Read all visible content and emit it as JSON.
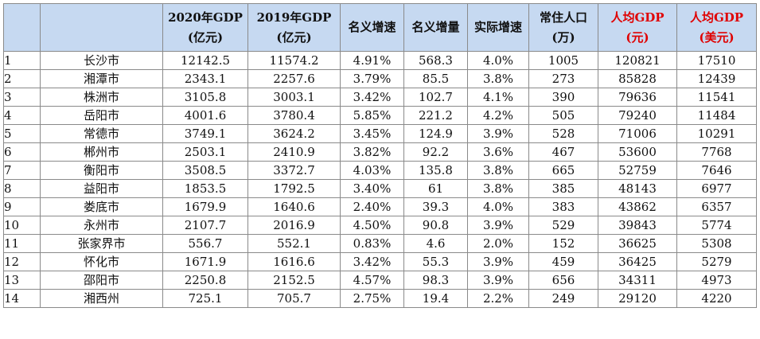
{
  "headers": [
    {
      "line1": "",
      "line2": ""
    },
    {
      "line1": "",
      "line2": ""
    },
    {
      "line1": "2020年GDP",
      "line2": "(亿元)"
    },
    {
      "line1": "2019年GDP",
      "line2": "(亿元)"
    },
    {
      "line1": "名义增速",
      "line2": ""
    },
    {
      "line1": "名义增量",
      "line2": ""
    },
    {
      "line1": "实际增速",
      "line2": ""
    },
    {
      "line1": "常住人口",
      "line2": "(万)"
    },
    {
      "line1": "人均GDP",
      "line2": "(元)"
    },
    {
      "line1": "人均GDP",
      "line2": "(美元)"
    }
  ],
  "rows": [
    {
      "rank": "1",
      "city": "长沙市",
      "gdp2020": "12142.5",
      "gdp2019": "11574.2",
      "nominal_growth": "4.91%",
      "nominal_increase": "568.3",
      "real_growth": "4.0%",
      "population": "1005",
      "per_capita_cny": "120821",
      "per_capita_usd": "17510"
    },
    {
      "rank": "2",
      "city": "湘潭市",
      "gdp2020": "2343.1",
      "gdp2019": "2257.6",
      "nominal_growth": "3.79%",
      "nominal_increase": "85.5",
      "real_growth": "3.8%",
      "population": "273",
      "per_capita_cny": "85828",
      "per_capita_usd": "12439"
    },
    {
      "rank": "3",
      "city": "株洲市",
      "gdp2020": "3105.8",
      "gdp2019": "3003.1",
      "nominal_growth": "3.42%",
      "nominal_increase": "102.7",
      "real_growth": "4.1%",
      "population": "390",
      "per_capita_cny": "79636",
      "per_capita_usd": "11541"
    },
    {
      "rank": "4",
      "city": "岳阳市",
      "gdp2020": "4001.6",
      "gdp2019": "3780.4",
      "nominal_growth": "5.85%",
      "nominal_increase": "221.2",
      "real_growth": "4.2%",
      "population": "505",
      "per_capita_cny": "79240",
      "per_capita_usd": "11484"
    },
    {
      "rank": "5",
      "city": "常德市",
      "gdp2020": "3749.1",
      "gdp2019": "3624.2",
      "nominal_growth": "3.45%",
      "nominal_increase": "124.9",
      "real_growth": "3.9%",
      "population": "528",
      "per_capita_cny": "71006",
      "per_capita_usd": "10291"
    },
    {
      "rank": "6",
      "city": "郴州市",
      "gdp2020": "2503.1",
      "gdp2019": "2410.9",
      "nominal_growth": "3.82%",
      "nominal_increase": "92.2",
      "real_growth": "3.6%",
      "population": "467",
      "per_capita_cny": "53600",
      "per_capita_usd": "7768"
    },
    {
      "rank": "7",
      "city": "衡阳市",
      "gdp2020": "3508.5",
      "gdp2019": "3372.7",
      "nominal_growth": "4.03%",
      "nominal_increase": "135.8",
      "real_growth": "3.8%",
      "population": "665",
      "per_capita_cny": "52759",
      "per_capita_usd": "7646"
    },
    {
      "rank": "8",
      "city": "益阳市",
      "gdp2020": "1853.5",
      "gdp2019": "1792.5",
      "nominal_growth": "3.40%",
      "nominal_increase": "61",
      "real_growth": "3.8%",
      "population": "385",
      "per_capita_cny": "48143",
      "per_capita_usd": "6977"
    },
    {
      "rank": "9",
      "city": "娄底市",
      "gdp2020": "1679.9",
      "gdp2019": "1640.6",
      "nominal_growth": "2.40%",
      "nominal_increase": "39.3",
      "real_growth": "4.0%",
      "population": "383",
      "per_capita_cny": "43862",
      "per_capita_usd": "6357"
    },
    {
      "rank": "10",
      "city": "永州市",
      "gdp2020": "2107.7",
      "gdp2019": "2016.9",
      "nominal_growth": "4.50%",
      "nominal_increase": "90.8",
      "real_growth": "3.9%",
      "population": "529",
      "per_capita_cny": "39843",
      "per_capita_usd": "5774"
    },
    {
      "rank": "11",
      "city": "张家界市",
      "gdp2020": "556.7",
      "gdp2019": "552.1",
      "nominal_growth": "0.83%",
      "nominal_increase": "4.6",
      "real_growth": "2.0%",
      "population": "152",
      "per_capita_cny": "36625",
      "per_capita_usd": "5308"
    },
    {
      "rank": "12",
      "city": "怀化市",
      "gdp2020": "1671.9",
      "gdp2019": "1616.6",
      "nominal_growth": "3.42%",
      "nominal_increase": "55.3",
      "real_growth": "3.9%",
      "population": "459",
      "per_capita_cny": "36425",
      "per_capita_usd": "5279"
    },
    {
      "rank": "13",
      "city": "邵阳市",
      "gdp2020": "2250.8",
      "gdp2019": "2152.5",
      "nominal_growth": "4.57%",
      "nominal_increase": "98.3",
      "real_growth": "3.9%",
      "population": "656",
      "per_capita_cny": "34311",
      "per_capita_usd": "4973"
    },
    {
      "rank": "14",
      "city": "湘西州",
      "gdp2020": "725.1",
      "gdp2019": "705.7",
      "nominal_growth": "2.75%",
      "nominal_increase": "19.4",
      "real_growth": "2.2%",
      "population": "249",
      "per_capita_cny": "29120",
      "per_capita_usd": "4220"
    }
  ],
  "colors": {
    "header_bg": "#c6d9f1",
    "highlight_text": "#e00000",
    "grid": "#8a8a8a"
  }
}
